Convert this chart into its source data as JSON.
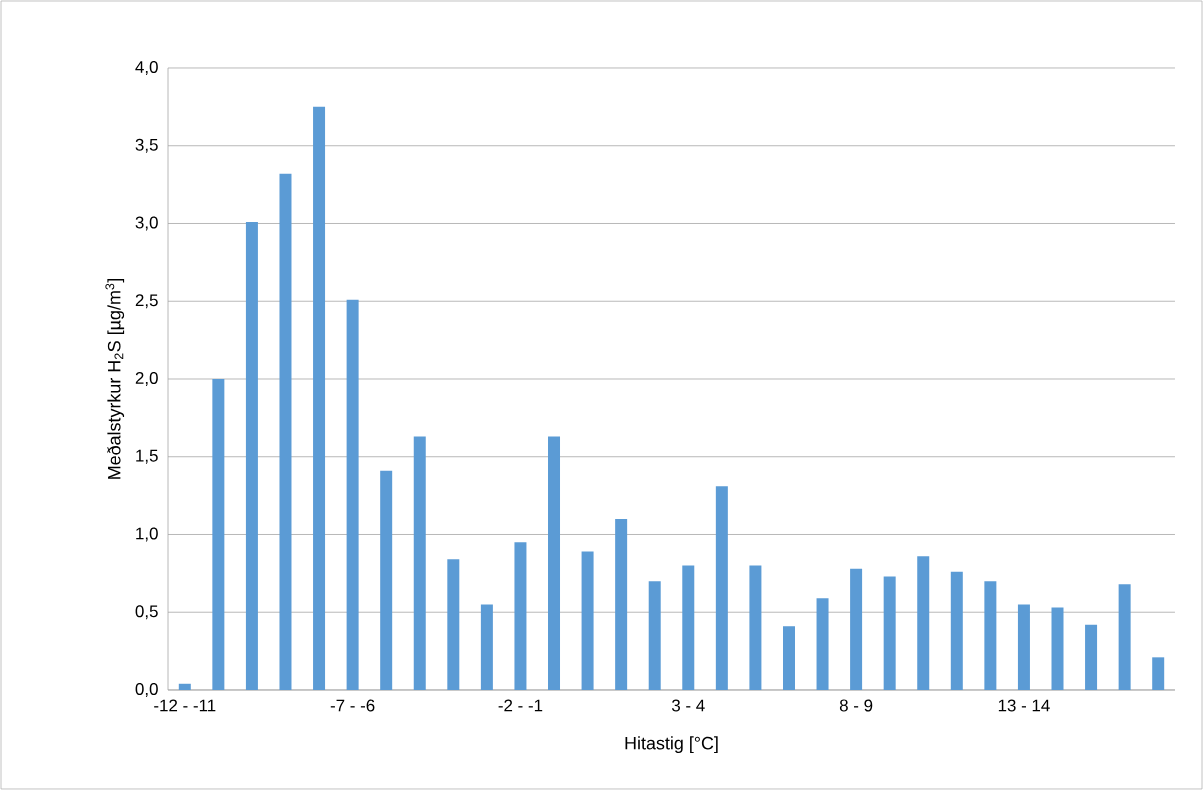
{
  "chart_data": {
    "type": "bar",
    "xlabel": "Hitastig [°C]",
    "ylabel": "Meðalstyrkur H$_{2}$S [µg/m$^{3}$]",
    "categories": [
      "-12 - -11",
      null,
      null,
      null,
      null,
      "-7 - -6",
      null,
      null,
      null,
      null,
      "-2 - -1",
      null,
      null,
      null,
      null,
      "3 - 4",
      null,
      null,
      null,
      null,
      "8 - 9",
      null,
      null,
      null,
      null,
      "13 - 14",
      null,
      null,
      null,
      null
    ],
    "values": [
      0.04,
      2.0,
      3.01,
      3.32,
      3.75,
      2.51,
      1.41,
      1.63,
      0.84,
      0.55,
      0.95,
      1.63,
      0.89,
      1.1,
      0.7,
      0.8,
      1.31,
      0.8,
      0.41,
      0.59,
      0.78,
      0.73,
      0.86,
      0.76,
      0.7,
      0.55,
      0.53,
      0.42,
      0.68,
      0.21
    ],
    "color": "#5b9bd5",
    "ylim": [
      0,
      4
    ],
    "yticks": [
      {
        "value": 0,
        "label": "0,0"
      },
      {
        "value": 0.5,
        "label": "0,5"
      },
      {
        "value": 1,
        "label": "1,0"
      },
      {
        "value": 1.5,
        "label": "1,5"
      },
      {
        "value": 2,
        "label": "2,0"
      },
      {
        "value": 2.5,
        "label": "2,5"
      },
      {
        "value": 3,
        "label": "3,0"
      },
      {
        "value": 3.5,
        "label": "3,5"
      },
      {
        "value": 4,
        "label": "4,0"
      }
    ],
    "grid": "y"
  }
}
